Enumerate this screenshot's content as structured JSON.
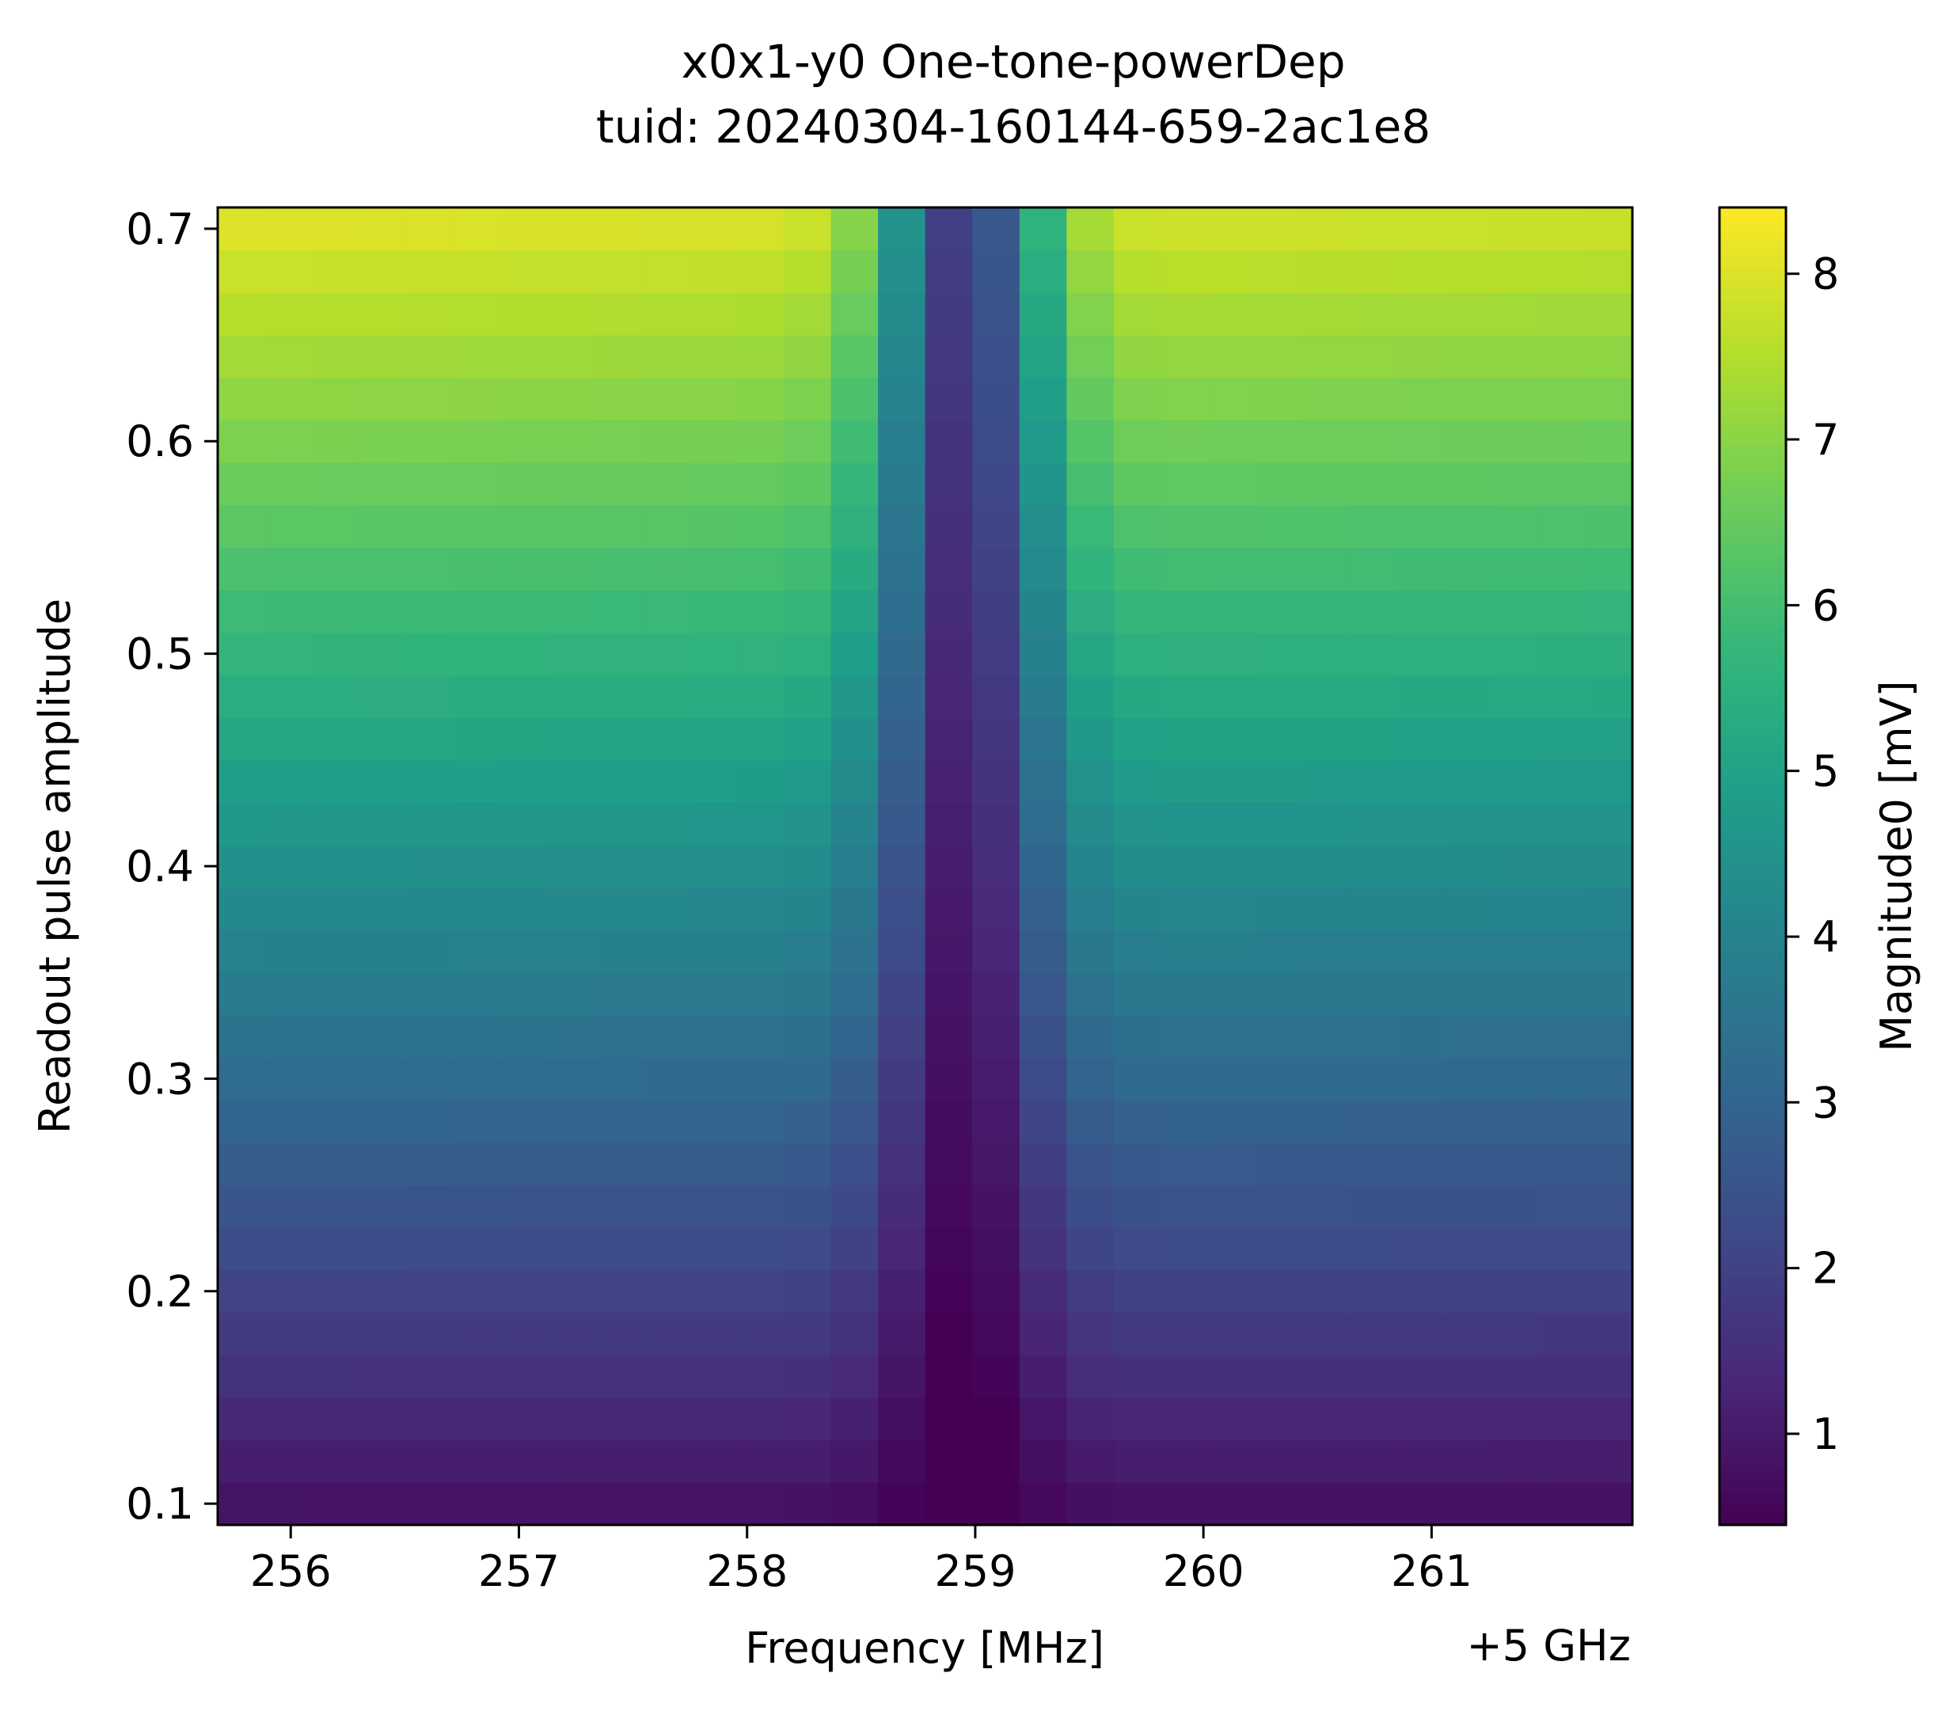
{
  "chart_data": {
    "type": "heatmap",
    "title": "x0x1-y0 One-tone-powerDep",
    "subtitle": "tuid: 20240304-160144-659-2ac1e8",
    "xlabel": "Frequency [MHz]",
    "x_offset_label": "+5 GHz",
    "ylabel": "Readout pulse amplitude",
    "colorbar_label": "Magnitude0 [mV]",
    "colormap": "viridis",
    "xlim": [
      255.68,
      261.88
    ],
    "ylim": [
      0.09,
      0.71
    ],
    "clim": [
      0.45,
      8.4
    ],
    "x_ticks": [
      "256",
      "257",
      "258",
      "259",
      "260",
      "261"
    ],
    "y_ticks": [
      "0.1",
      "0.2",
      "0.3",
      "0.4",
      "0.5",
      "0.6",
      "0.7"
    ],
    "colorbar_ticks": [
      "1",
      "2",
      "3",
      "4",
      "5",
      "6",
      "7",
      "8"
    ],
    "x_start": 255.68,
    "x_step": 0.2067,
    "x_count": 30,
    "y_start": 0.09,
    "y_step": 0.02,
    "y_count": 31,
    "resonance_center_mhz": 258.95,
    "colors": {
      "axis": "#000000",
      "background": "#ffffff"
    }
  }
}
